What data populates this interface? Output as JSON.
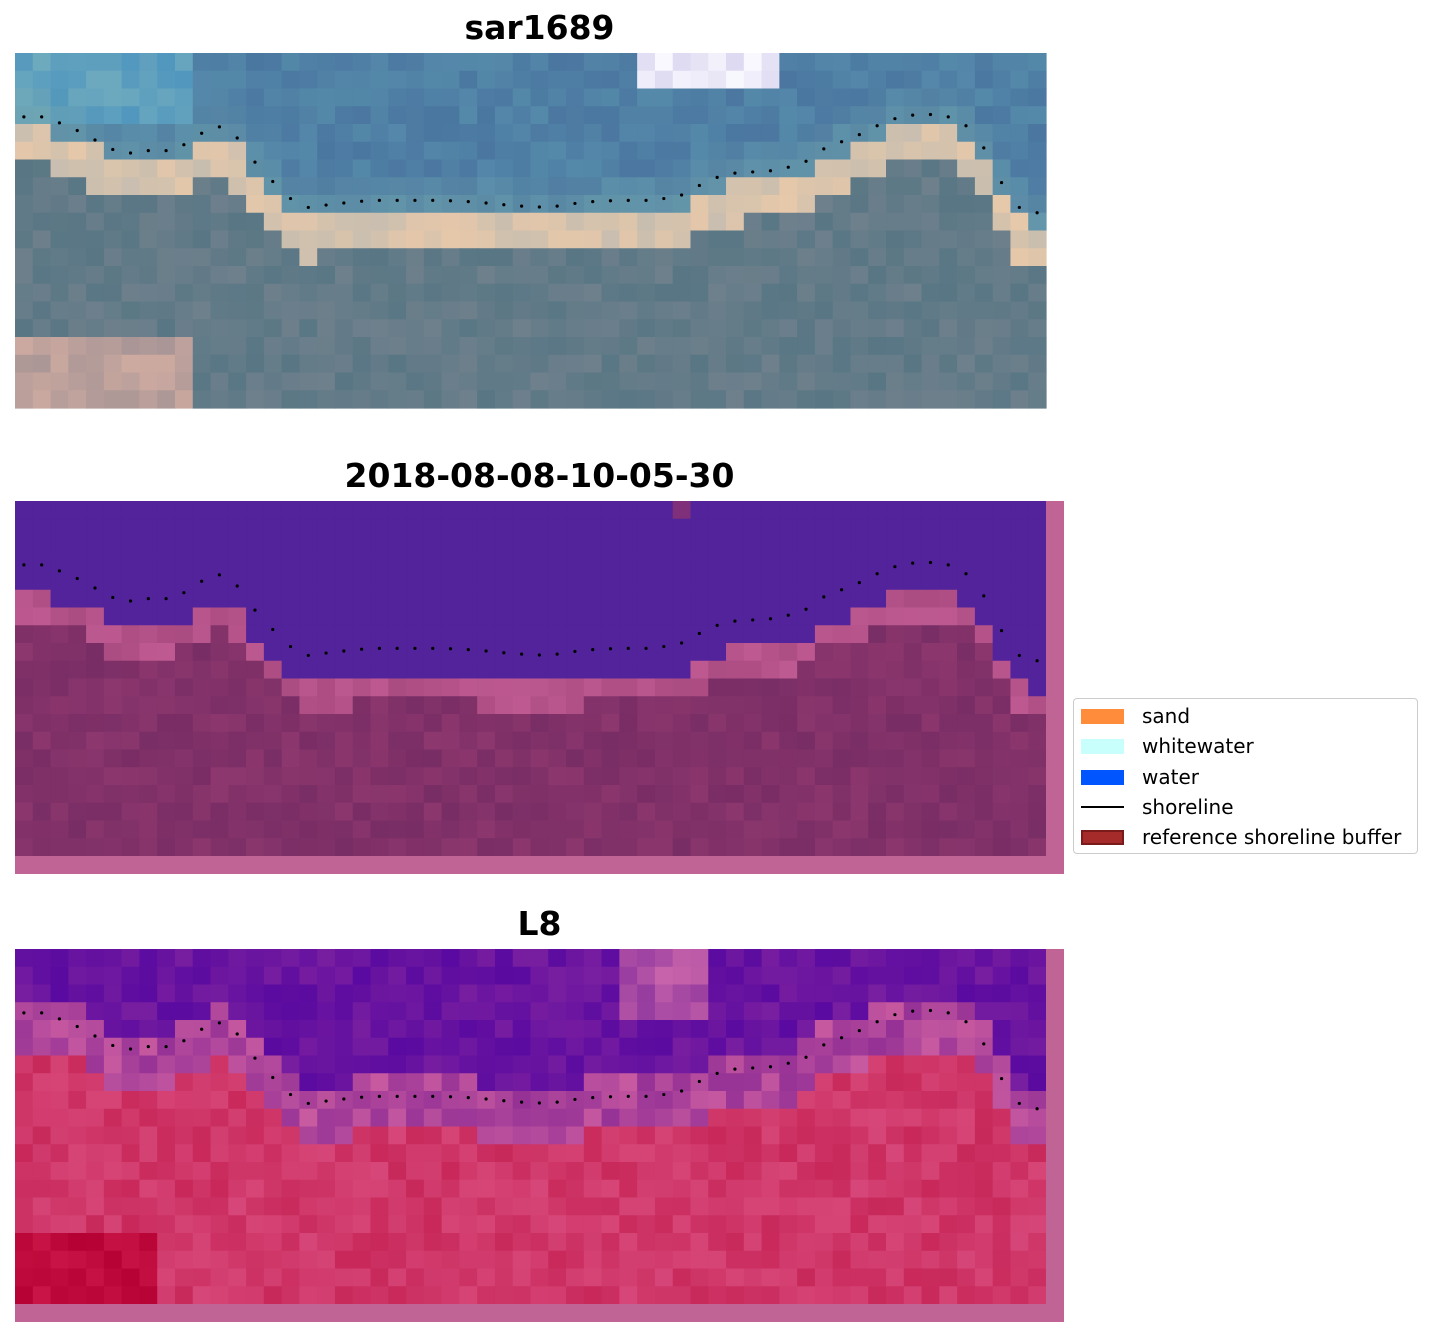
{
  "chart_data": [
    {
      "type": "other",
      "title": "sar1689",
      "image": "RGB satellite image of coast with detected shoreline"
    },
    {
      "type": "other",
      "title": "2018-08-08-10-05-30",
      "image": "classification overlay of water and land"
    },
    {
      "type": "other",
      "title": "L8",
      "image": "water index overlay with detected shoreline"
    }
  ],
  "legend": {
    "items": [
      {
        "label": "sand",
        "color": "#ff8c3a",
        "kind": "patch"
      },
      {
        "label": "whitewater",
        "color": "#c8fffd",
        "kind": "patch"
      },
      {
        "label": "water",
        "color": "#0055ff",
        "kind": "patch"
      },
      {
        "label": "shoreline",
        "color": "#000000",
        "kind": "line"
      },
      {
        "label": "reference shoreline buffer",
        "color": "#a52a2a",
        "kind": "patch"
      }
    ]
  },
  "shoreline": {
    "coastline_pts": [
      [
        0,
        4.2
      ],
      [
        1.5,
        4.2
      ],
      [
        3,
        4.7
      ],
      [
        4.5,
        5.5
      ],
      [
        6,
        6.3
      ],
      [
        7.5,
        6.1
      ],
      [
        9,
        6.1
      ],
      [
        10.2,
        5.3
      ],
      [
        11.2,
        4.7
      ],
      [
        12.2,
        4.9
      ],
      [
        13,
        6.2
      ],
      [
        14,
        7.3
      ],
      [
        15.3,
        8.7
      ],
      [
        16.5,
        9.3
      ],
      [
        18,
        9.1
      ],
      [
        20,
        8.9
      ],
      [
        22,
        8.9
      ],
      [
        24,
        8.9
      ],
      [
        26,
        9.0
      ],
      [
        28,
        9.2
      ],
      [
        30,
        9.3
      ],
      [
        32,
        9.0
      ],
      [
        34,
        8.9
      ],
      [
        36,
        8.9
      ],
      [
        37.5,
        8.6
      ],
      [
        38.8,
        7.9
      ],
      [
        40,
        7.4
      ],
      [
        41.5,
        7.3
      ],
      [
        43,
        7.2
      ],
      [
        44.5,
        6.7
      ],
      [
        45.5,
        6.0
      ],
      [
        46.5,
        5.6
      ],
      [
        47.5,
        5.2
      ],
      [
        48.5,
        4.7
      ],
      [
        49.5,
        4.3
      ],
      [
        51,
        4.0
      ],
      [
        52.5,
        4.2
      ],
      [
        53.5,
        4.7
      ],
      [
        54.3,
        5.6
      ],
      [
        55,
        6.8
      ],
      [
        55.5,
        7.9
      ],
      [
        56,
        9.0
      ],
      [
        57,
        9.6
      ],
      [
        58,
        9.6
      ]
    ]
  }
}
